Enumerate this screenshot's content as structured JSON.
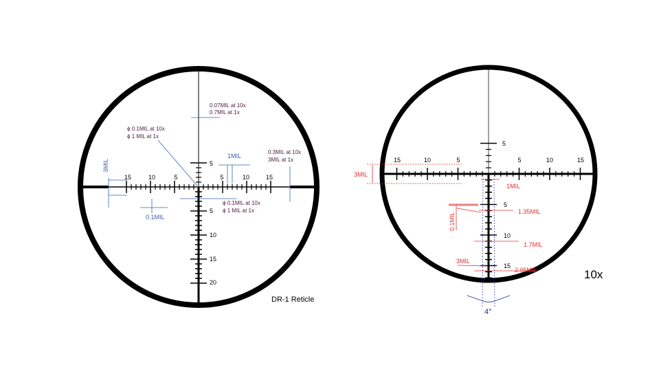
{
  "left": {
    "title": "DR-1 Reticle",
    "h_labels_left": [
      "15",
      "10",
      "5"
    ],
    "h_labels_right": [
      "5",
      "10",
      "15"
    ],
    "v_label_up": "5",
    "v_labels_down": [
      "5",
      "10",
      "15",
      "20"
    ],
    "notes": {
      "line_top_1": "0.07MIL at 10x",
      "line_top_2": "0.7MIL at 1x",
      "dot_1": "ϕ 0.1MIL  at 10x",
      "dot_2": "ϕ 1 MIL at 1x",
      "post_1": "0.3MIL at 10x",
      "post_2": "3MIL at 1x",
      "bar_1": "ϕ 0.1MIL  at 10x",
      "bar_2": "ϕ 1 MIL at 1x",
      "one_mil": "1MIL",
      "three_mil": "3MIL",
      "tenth_mil": "0.1MIL"
    }
  },
  "right": {
    "magnification": "10x",
    "h_labels_left": [
      "15",
      "10",
      "5"
    ],
    "h_labels_right": [
      "5",
      "10",
      "15"
    ],
    "v_label_up": "5",
    "v_labels_down": [
      "5",
      "10",
      "15"
    ],
    "notes": {
      "three_mil_h": "3MIL",
      "one_mil": "1MIL",
      "tenth_mil": "0.1MIL",
      "w1": "1.35MIL",
      "w2": "1.7MIL",
      "three_mil_v": "3MIL",
      "w3": "2.05MIL",
      "angle": "4°"
    }
  },
  "colors": {
    "note": "#4a1a3a",
    "blue": "#3a62a8",
    "red": "#e03030",
    "reticle": "#000000"
  }
}
